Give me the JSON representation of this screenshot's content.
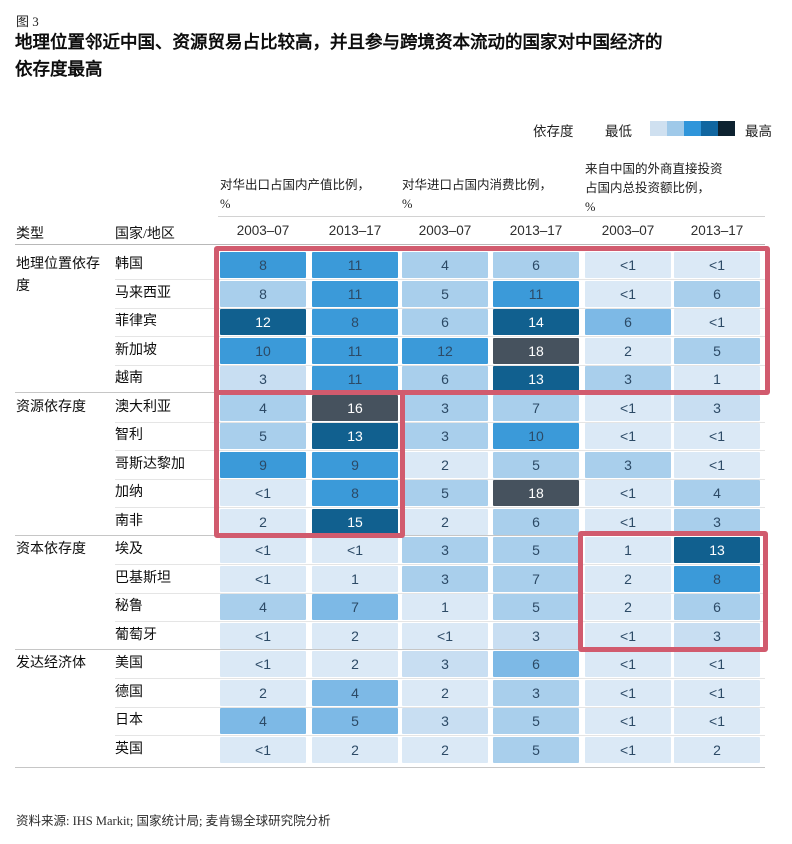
{
  "figure_tag": "图 3",
  "title": "地理位置邻近中国、资源贸易占比较高，并且参与跨境资本流动的国家对中国经济的\n依存度最高",
  "legend": {
    "label": "依存度",
    "min": "最低",
    "max": "最高",
    "swatches": [
      "#cfe0f0",
      "#9fc9e9",
      "#2f95da",
      "#1166a0",
      "#0d2230"
    ]
  },
  "source": "资料来源: IHS Markit; 国家统计局; 麦肯锡全球研究院分析",
  "palette": {
    "1": "#dbe9f6",
    "1.5": "#c8def2",
    "2": "#a9cfec",
    "2.5": "#7db9e6",
    "3": "#3b9ad9",
    "4": "#11608f",
    "5": "#46525e"
  },
  "highlight_color": "#d15b6e",
  "chart_data": {
    "type": "heatmap",
    "title": "地理位置邻近中国、资源贸易占比较高，并且参与跨境资本流动的国家对中国经济的依存度最高",
    "type_header": "类型",
    "country_header": "国家/地区",
    "column_groups": [
      {
        "title": "对华出口占国内产值比例，\n%",
        "periods": [
          "2003–07",
          "2013–17"
        ]
      },
      {
        "title": "对华进口占国内消费比例，\n%",
        "periods": [
          "2003–07",
          "2013–17"
        ]
      },
      {
        "title": "来自中国的外商直接投资\n占国内总投资额比例，\n%",
        "periods": [
          "2003–07",
          "2013–17"
        ]
      }
    ],
    "period_labels": [
      "2003–07",
      "2013–17",
      "2003–07",
      "2013–17",
      "2003–07",
      "2013–17"
    ],
    "legend_note": "单元格颜色表示依存度，从最低（浅蓝）到最高（深色）",
    "groups": [
      {
        "type": "地理位置依存度",
        "rows": [
          {
            "country": "韩国",
            "values": [
              "8",
              "11",
              "4",
              "6",
              "<1",
              "<1"
            ],
            "levels": [
              3,
              3,
              2,
              2,
              1,
              1
            ]
          },
          {
            "country": "马来西亚",
            "values": [
              "8",
              "11",
              "5",
              "11",
              "<1",
              "6"
            ],
            "levels": [
              2,
              3,
              2,
              3,
              1,
              2
            ]
          },
          {
            "country": "菲律宾",
            "values": [
              "12",
              "8",
              "6",
              "14",
              "6",
              "<1"
            ],
            "levels": [
              4,
              3,
              2,
              4,
              2.5,
              1
            ]
          },
          {
            "country": "新加坡",
            "values": [
              "10",
              "11",
              "12",
              "18",
              "2",
              "5"
            ],
            "levels": [
              3,
              3,
              3,
              5,
              1,
              2
            ]
          },
          {
            "country": "越南",
            "values": [
              "3",
              "11",
              "6",
              "13",
              "3",
              "1"
            ],
            "levels": [
              1.5,
              3,
              2,
              4,
              2,
              1
            ]
          }
        ]
      },
      {
        "type": "资源依存度",
        "rows": [
          {
            "country": "澳大利亚",
            "values": [
              "4",
              "16",
              "3",
              "7",
              "<1",
              "3"
            ],
            "levels": [
              2,
              5,
              2,
              2,
              1,
              1.5
            ]
          },
          {
            "country": "智利",
            "values": [
              "5",
              "13",
              "3",
              "10",
              "<1",
              "<1"
            ],
            "levels": [
              2,
              4,
              2,
              3,
              1,
              1
            ]
          },
          {
            "country": "哥斯达黎加",
            "values": [
              "9",
              "9",
              "2",
              "5",
              "3",
              "<1"
            ],
            "levels": [
              3,
              3,
              1,
              2,
              2,
              1
            ]
          },
          {
            "country": "加纳",
            "values": [
              "<1",
              "8",
              "5",
              "18",
              "<1",
              "4"
            ],
            "levels": [
              1,
              3,
              2,
              5,
              1,
              2
            ]
          },
          {
            "country": "南非",
            "values": [
              "2",
              "15",
              "2",
              "6",
              "<1",
              "3"
            ],
            "levels": [
              1,
              4,
              1,
              2,
              1,
              2
            ]
          }
        ]
      },
      {
        "type": "资本依存度",
        "rows": [
          {
            "country": "埃及",
            "values": [
              "<1",
              "<1",
              "3",
              "5",
              "1",
              "13"
            ],
            "levels": [
              1,
              1,
              2,
              2,
              1,
              4
            ]
          },
          {
            "country": "巴基斯坦",
            "values": [
              "<1",
              "1",
              "3",
              "7",
              "2",
              "8"
            ],
            "levels": [
              1,
              1,
              2,
              2,
              1,
              3
            ]
          },
          {
            "country": "秘鲁",
            "values": [
              "4",
              "7",
              "1",
              "5",
              "2",
              "6"
            ],
            "levels": [
              2,
              2.5,
              1,
              2,
              1,
              2
            ]
          },
          {
            "country": "葡萄牙",
            "values": [
              "<1",
              "2",
              "<1",
              "3",
              "<1",
              "3"
            ],
            "levels": [
              1,
              1,
              1,
              1.5,
              1,
              1.5
            ]
          }
        ]
      },
      {
        "type": "发达经济体",
        "rows": [
          {
            "country": "美国",
            "values": [
              "<1",
              "2",
              "3",
              "6",
              "<1",
              "<1"
            ],
            "levels": [
              1,
              1,
              1.5,
              2.5,
              1,
              1
            ]
          },
          {
            "country": "德国",
            "values": [
              "2",
              "4",
              "2",
              "3",
              "<1",
              "<1"
            ],
            "levels": [
              1,
              2.5,
              1,
              2,
              1,
              1
            ]
          },
          {
            "country": "日本",
            "values": [
              "4",
              "5",
              "3",
              "5",
              "<1",
              "<1"
            ],
            "levels": [
              2.5,
              2.5,
              1.5,
              2,
              1,
              1
            ]
          },
          {
            "country": "英国",
            "values": [
              "<1",
              "2",
              "2",
              "5",
              "<1",
              "2"
            ],
            "levels": [
              1,
              1,
              1,
              2,
              1,
              1
            ]
          }
        ]
      }
    ]
  }
}
